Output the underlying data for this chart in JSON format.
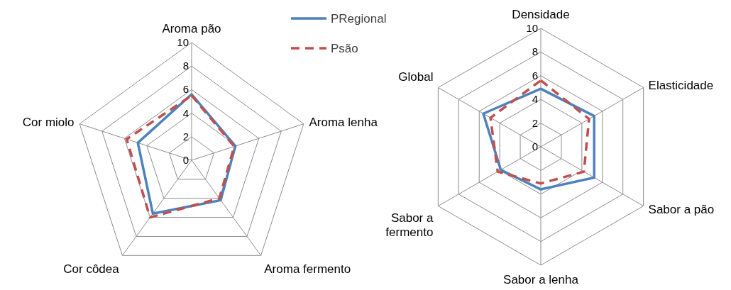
{
  "chart_data": [
    {
      "type": "radar",
      "categories": [
        "Aroma pão",
        "Aroma lenha",
        "Aroma fermento",
        "Cor côdea",
        "Cor miolo"
      ],
      "ylim": [
        0,
        10
      ],
      "yticks": [
        0,
        2,
        4,
        6,
        8,
        10
      ],
      "grid": true,
      "legend": "top right",
      "series": [
        {
          "name": "PRegional",
          "color": "#4f81bd",
          "line_style": "solid",
          "values": [
            5.6,
            3.9,
            4.2,
            5.6,
            4.8
          ]
        },
        {
          "name": "Psão",
          "color": "#c0504d",
          "line_style": "dashed",
          "values": [
            5.5,
            3.8,
            4.0,
            6.0,
            5.8
          ]
        }
      ]
    },
    {
      "type": "radar",
      "categories": [
        "Densidade",
        "Elasticidade",
        "Sabor a pão",
        "Sabor a lenha",
        "Sabor a fermento",
        "Global"
      ],
      "ylim": [
        0,
        10
      ],
      "yticks": [
        0,
        2,
        4,
        6,
        8,
        10
      ],
      "grid": true,
      "series": [
        {
          "color": "#4f81bd",
          "line_style": "solid",
          "values": [
            4.9,
            5.2,
            5.2,
            3.6,
            3.9,
            5.6
          ]
        },
        {
          "color": "#c0504d",
          "line_style": "dashed",
          "values": [
            5.6,
            4.7,
            4.2,
            3.1,
            4.2,
            4.9
          ]
        }
      ]
    }
  ]
}
